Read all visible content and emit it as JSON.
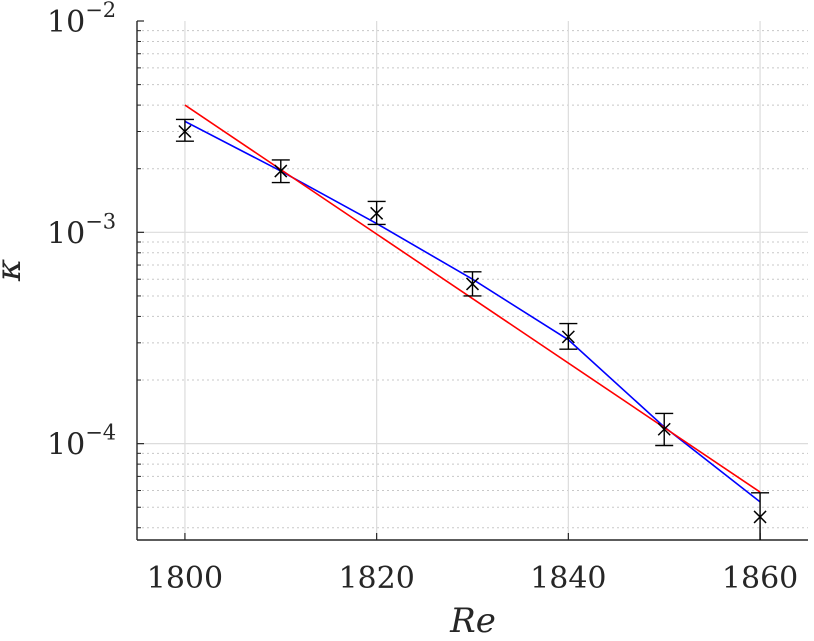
{
  "chart_data": {
    "type": "scatter",
    "xlabel": "Re",
    "ylabel": "κ",
    "xlim": [
      1795,
      1865
    ],
    "ylim": [
      3.5e-05,
      0.01
    ],
    "yscale": "log",
    "grid": true,
    "x_ticks": [
      1800,
      1820,
      1840,
      1860
    ],
    "x_tick_labels": [
      "1800",
      "1820",
      "1840",
      "1860"
    ],
    "y_ticks": [
      0.0001,
      0.001,
      0.01
    ],
    "y_tick_labels": [
      {
        "base": "10",
        "exp": "−4"
      },
      {
        "base": "10",
        "exp": "−3"
      },
      {
        "base": "10",
        "exp": "−2"
      }
    ],
    "measurements": {
      "marker": "x",
      "color": "#000000",
      "x": [
        1800,
        1810,
        1820,
        1830,
        1840,
        1850,
        1860
      ],
      "y": [
        0.003,
        0.00195,
        0.00123,
        0.00057,
        0.00032,
        0.000117,
        4.5e-05
      ],
      "err_low": [
        0.0027,
        0.00172,
        0.00109,
        0.0005,
        0.00028,
        9.8e-05,
        3.45e-05
      ],
      "err_high": [
        0.00342,
        0.0022,
        0.0014,
        0.00065,
        0.00037,
        0.000139,
        5.85e-05
      ]
    },
    "fits": [
      {
        "color": "#0000ff",
        "x": [
          1800,
          1810,
          1820,
          1830,
          1840,
          1850,
          1860
        ],
        "y": [
          0.00335,
          0.00195,
          0.0011,
          0.0006,
          0.00031,
          0.00012,
          5.3e-05
        ]
      },
      {
        "color": "#ff0000",
        "x": [
          1800,
          1860
        ],
        "y": [
          0.004,
          5.9e-05
        ]
      }
    ]
  }
}
